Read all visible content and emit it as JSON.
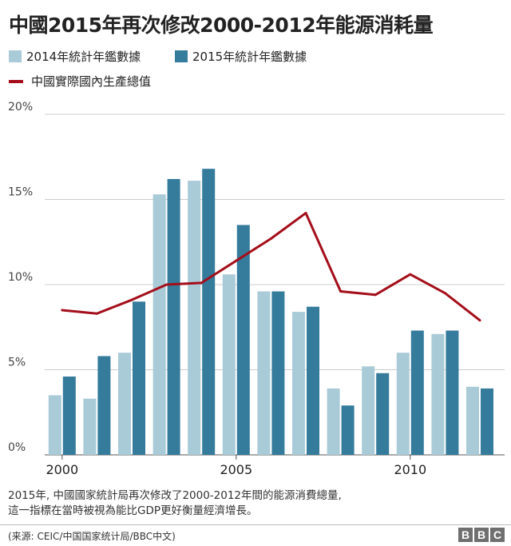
{
  "title": "中國2015年再次修改2000-2012年能源消耗量",
  "colors": {
    "series_2014": "#a9cbd7",
    "series_2015": "#347b9c",
    "gdp_line": "#a40e1a",
    "grid": "#cccccc"
  },
  "footnote": {
    "line1": "2015年, 中國國家統計局再次修改了2000-2012年間的能源消費總量,",
    "line2": "這一指標在當時被視為能比GDP更好衡量經濟增長。"
  },
  "source": "(来源: CEIC/中国国家统计局/BBC中文)",
  "logo": {
    "letters": [
      "B",
      "B",
      "C"
    ]
  },
  "chart_data": {
    "type": "bar",
    "title": "中國2015年再次修改2000-2012年能源消耗量",
    "categories": [
      "2000",
      "2001",
      "2002",
      "2003",
      "2004",
      "2005",
      "2006",
      "2007",
      "2008",
      "2009",
      "2010",
      "2011",
      "2012"
    ],
    "series": [
      {
        "name": "2014年統計年鑑數據",
        "type": "bar",
        "values": [
          3.5,
          3.3,
          6.0,
          15.3,
          16.1,
          10.6,
          9.6,
          8.4,
          3.9,
          5.2,
          6.0,
          7.1,
          4.0
        ]
      },
      {
        "name": "2015年統計年鑑數據",
        "type": "bar",
        "values": [
          4.6,
          5.8,
          9.0,
          16.2,
          16.8,
          13.5,
          9.6,
          8.7,
          2.9,
          4.8,
          7.3,
          7.3,
          3.9
        ]
      },
      {
        "name": "中國實際國內生產總值",
        "type": "line",
        "values": [
          8.5,
          8.3,
          9.1,
          10.0,
          10.1,
          11.4,
          12.7,
          14.2,
          9.6,
          9.4,
          10.6,
          9.5,
          7.9
        ]
      }
    ],
    "ylim": [
      0,
      20
    ],
    "yticks": [
      0,
      5,
      10,
      15,
      20
    ],
    "ytick_labels": [
      "0%",
      "5%",
      "10%",
      "15%",
      "20%"
    ],
    "xtick_labels": [
      "2000",
      "2005",
      "2010"
    ],
    "xlabel": "",
    "ylabel": "",
    "grid": true,
    "legend_position": "top-left"
  }
}
